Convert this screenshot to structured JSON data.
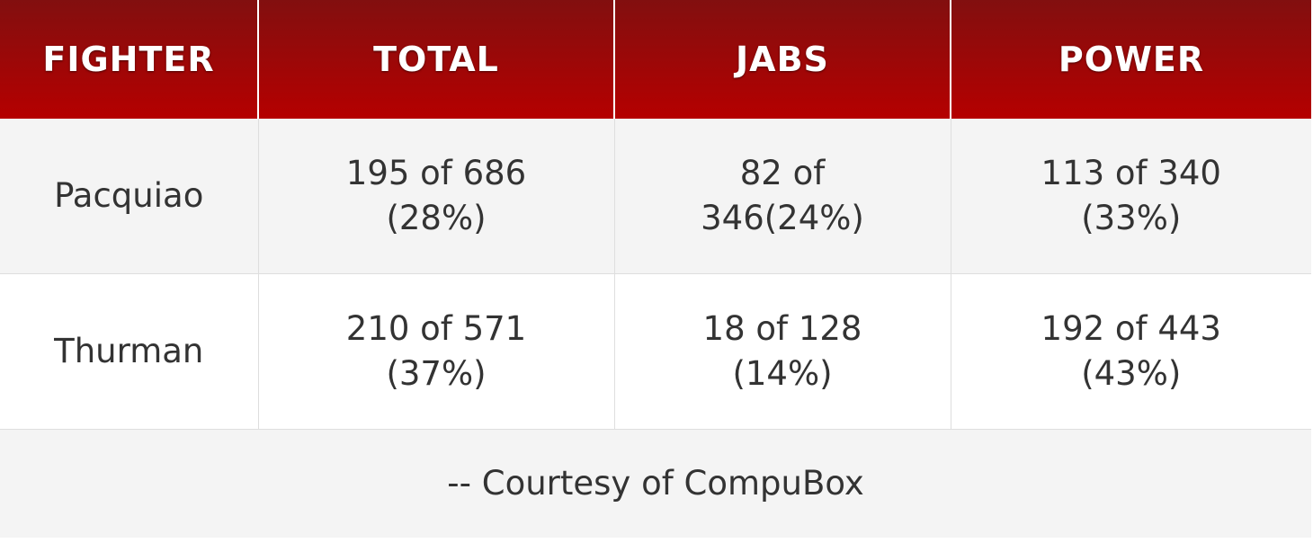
{
  "table": {
    "headers": [
      "FIGHTER",
      "TOTAL",
      "JABS",
      "POWER"
    ],
    "rows": [
      {
        "fighter": "Pacquiao",
        "total": [
          "195 of 686",
          "(28%)"
        ],
        "jabs": [
          "82 of",
          "346(24%)"
        ],
        "power": [
          "113 of 340",
          "(33%)"
        ]
      },
      {
        "fighter": "Thurman",
        "total": [
          "210 of 571",
          "(37%)"
        ],
        "jabs": [
          "18 of 128",
          "(14%)"
        ],
        "power": [
          "192 of 443",
          "(43%)"
        ]
      }
    ],
    "footer": "-- Courtesy of CompuBox"
  },
  "colors": {
    "header_dark": "#820f0f",
    "header_light": "#b50000",
    "row_odd": "#f4f4f4",
    "row_even": "#ffffff",
    "text": "#333333"
  },
  "chart_data": {
    "type": "table",
    "columns": [
      "FIGHTER",
      "TOTAL",
      "JABS",
      "POWER"
    ],
    "rows": [
      [
        "Pacquiao",
        "195 of 686 (28%)",
        "82 of 346(24%)",
        "113 of 340 (33%)"
      ],
      [
        "Thurman",
        "210 of 571 (37%)",
        "18 of 128 (14%)",
        "192 of 443 (43%)"
      ]
    ],
    "footer": "-- Courtesy of CompuBox"
  }
}
